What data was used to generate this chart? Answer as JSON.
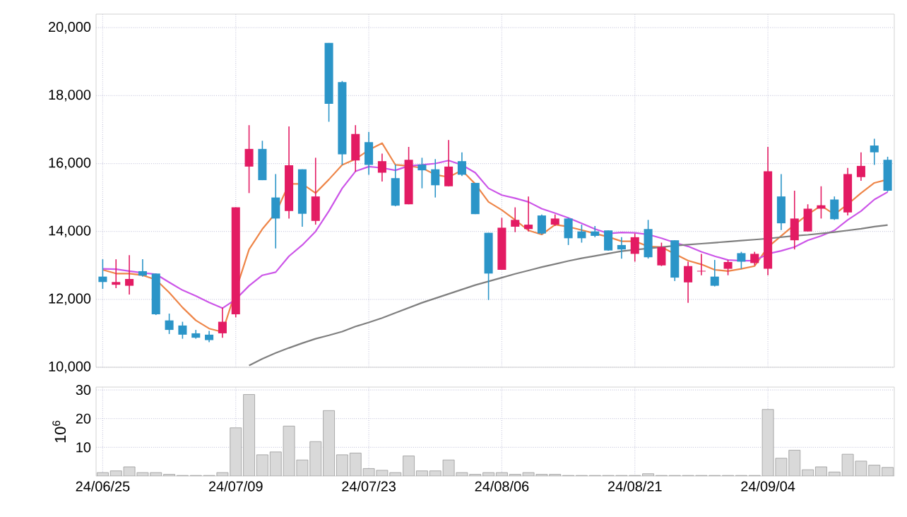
{
  "chart_data": [
    {
      "type": "candlestick",
      "categories": [
        null,
        null,
        null,
        null,
        null,
        null,
        null,
        null,
        null,
        null,
        null,
        null,
        null,
        null,
        null,
        null,
        null,
        null,
        null,
        null,
        null,
        null,
        null,
        null,
        null,
        null,
        null,
        null,
        null,
        null,
        null,
        null,
        null,
        null,
        null,
        null,
        null,
        null,
        null,
        null,
        null,
        null,
        null,
        null,
        null,
        null,
        null,
        null,
        null,
        null,
        null,
        null,
        null,
        null,
        null,
        null,
        null,
        null,
        null,
        null
      ],
      "ohlc": [
        [
          12670,
          13180,
          12310,
          12510
        ],
        [
          12430,
          13180,
          12330,
          12510
        ],
        [
          12400,
          13300,
          12140,
          12600
        ],
        [
          12830,
          13180,
          12670,
          12700
        ],
        [
          12760,
          12760,
          11540,
          11560
        ],
        [
          11380,
          11580,
          10980,
          11100
        ],
        [
          11230,
          11340,
          10840,
          10960
        ],
        [
          11000,
          11100,
          10840,
          10870
        ],
        [
          10960,
          11070,
          10740,
          10800
        ],
        [
          11000,
          11760,
          10870,
          11340
        ],
        [
          11560,
          14710,
          11470,
          14710
        ],
        [
          15910,
          17130,
          15130,
          16430
        ],
        [
          16430,
          16670,
          15510,
          15510
        ],
        [
          15000,
          15690,
          13500,
          14380
        ],
        [
          14600,
          17090,
          14380,
          15950
        ],
        [
          15830,
          15830,
          14140,
          14520
        ],
        [
          14310,
          16170,
          14200,
          15030
        ],
        [
          19550,
          19550,
          17230,
          17760
        ],
        [
          18400,
          18430,
          15960,
          16270
        ],
        [
          16090,
          17130,
          15760,
          16870
        ],
        [
          16630,
          16930,
          15670,
          15960
        ],
        [
          15730,
          16290,
          15470,
          16070
        ],
        [
          15570,
          15970,
          14740,
          14760
        ],
        [
          14800,
          16490,
          14800,
          16110
        ],
        [
          15970,
          16170,
          15270,
          15800
        ],
        [
          15830,
          16130,
          15000,
          15360
        ],
        [
          15330,
          16690,
          15330,
          15910
        ],
        [
          16070,
          16330,
          15630,
          15670
        ],
        [
          15430,
          15430,
          14510,
          14510
        ],
        [
          13960,
          13960,
          11980,
          12760
        ],
        [
          12870,
          14400,
          12870,
          14110
        ],
        [
          14140,
          14710,
          13980,
          14340
        ],
        [
          14070,
          15030,
          14000,
          14200
        ],
        [
          14470,
          14500,
          13910,
          13940
        ],
        [
          14200,
          14500,
          14160,
          14380
        ],
        [
          14380,
          14400,
          13600,
          13800
        ],
        [
          14000,
          14200,
          13670,
          13800
        ],
        [
          14000,
          14160,
          13830,
          13870
        ],
        [
          14030,
          14030,
          13430,
          13440
        ],
        [
          13600,
          13830,
          13200,
          13470
        ],
        [
          13340,
          13940,
          13110,
          13830
        ],
        [
          14070,
          14340,
          13200,
          13240
        ],
        [
          13000,
          13670,
          12980,
          13540
        ],
        [
          13740,
          13740,
          12540,
          12640
        ],
        [
          12500,
          13110,
          11900,
          12980
        ],
        [
          12820,
          13340,
          12710,
          12840
        ],
        [
          12670,
          13160,
          12380,
          12400
        ],
        [
          12900,
          13160,
          12710,
          13100
        ],
        [
          13360,
          13400,
          12900,
          13110
        ],
        [
          13070,
          13400,
          13000,
          13340
        ],
        [
          12900,
          16490,
          12710,
          15770
        ],
        [
          15030,
          15690,
          14040,
          14240
        ],
        [
          13740,
          15200,
          13470,
          14380
        ],
        [
          14000,
          14800,
          14000,
          14670
        ],
        [
          14670,
          15330,
          14380,
          14770
        ],
        [
          14940,
          15030,
          14340,
          14360
        ],
        [
          14560,
          15870,
          14470,
          15690
        ],
        [
          15600,
          16330,
          15490,
          15930
        ],
        [
          16530,
          16730,
          15960,
          16330
        ],
        [
          16110,
          16200,
          15170,
          15200
        ]
      ],
      "colors": [
        "#2b95c8",
        "#e31b63",
        "#e31b63",
        "#2b95c8",
        "#2b95c8",
        "#2b95c8",
        "#2b95c8",
        "#2b95c8",
        "#2b95c8",
        "#e31b63",
        "#e31b63",
        "#e31b63",
        "#2b95c8",
        "#2b95c8",
        "#e31b63",
        "#2b95c8",
        "#e31b63",
        "#2b95c8",
        "#2b95c8",
        "#e31b63",
        "#2b95c8",
        "#e31b63",
        "#2b95c8",
        "#e31b63",
        "#2b95c8",
        "#2b95c8",
        "#e31b63",
        "#2b95c8",
        "#2b95c8",
        "#2b95c8",
        "#e31b63",
        "#e31b63",
        "#e31b63",
        "#2b95c8",
        "#e31b63",
        "#2b95c8",
        "#2b95c8",
        "#2b95c8",
        "#2b95c8",
        "#2b95c8",
        "#e31b63",
        "#2b95c8",
        "#e31b63",
        "#2b95c8",
        "#e31b63",
        "#e31b63",
        "#2b95c8",
        "#e31b63",
        "#2b95c8",
        "#e31b63",
        "#e31b63",
        "#2b95c8",
        "#e31b63",
        "#e31b63",
        "#e31b63",
        "#2b95c8",
        "#e31b63",
        "#e31b63",
        "#2b95c8",
        "#2b95c8"
      ],
      "series": [
        {
          "type": "line",
          "color": "#ee8548",
          "values": [
            12870,
            12760,
            12760,
            12710,
            12580,
            12200,
            11760,
            11380,
            11140,
            11040,
            null,
            13470,
            14070,
            14540,
            15400,
            15400,
            15130,
            15530,
            15960,
            16130,
            16400,
            16600,
            15960,
            15930,
            15870,
            15670,
            15600,
            15800,
            15400,
            14870,
            14630,
            14340,
            14030,
            13910,
            14200,
            14140,
            14040,
            13940,
            13840,
            13710,
            13710,
            13560,
            13540,
            13340,
            13140,
            13030,
            12870,
            12830,
            12900,
            12980,
            13540,
            13870,
            14200,
            14500,
            14760,
            14500,
            14800,
            15130,
            15430,
            15530
          ]
        },
        {
          "type": "line",
          "color": "#cc55e8",
          "values": [
            12900,
            12890,
            12830,
            12780,
            12740,
            12500,
            12270,
            12100,
            11910,
            11740,
            12000,
            12400,
            12710,
            12800,
            13270,
            13600,
            14000,
            14600,
            15270,
            15770,
            15910,
            15870,
            15800,
            15930,
            15960,
            16000,
            16090,
            15960,
            15730,
            15270,
            15070,
            14980,
            14870,
            14670,
            14540,
            14400,
            14240,
            14070,
            13940,
            13970,
            13960,
            13910,
            13800,
            13670,
            13560,
            13400,
            13270,
            13160,
            13140,
            13140,
            13340,
            13430,
            13540,
            13740,
            13870,
            14030,
            14340,
            14600,
            14940,
            15160
          ]
        },
        {
          "type": "line",
          "color": "#7f7f7f",
          "values": [
            null,
            null,
            null,
            null,
            null,
            null,
            null,
            null,
            null,
            null,
            null,
            10050,
            10250,
            10420,
            10570,
            10710,
            10840,
            10940,
            11050,
            11200,
            11320,
            11450,
            11600,
            11750,
            11900,
            12030,
            12160,
            12290,
            12420,
            12530,
            12640,
            12750,
            12850,
            12950,
            13040,
            13130,
            13210,
            13280,
            13350,
            13420,
            13460,
            13500,
            13540,
            13580,
            13610,
            13640,
            13670,
            13700,
            13730,
            13760,
            13790,
            13830,
            13870,
            13900,
            13940,
            13980,
            14030,
            14080,
            14140,
            14190
          ]
        }
      ],
      "ylim": [
        10000,
        20400
      ],
      "yticks": [
        {
          "value": 10000,
          "label": "10,000"
        },
        {
          "value": 12000,
          "label": "12,000"
        },
        {
          "value": 14000,
          "label": "14,000"
        },
        {
          "value": 16000,
          "label": "16,000"
        },
        {
          "value": 18000,
          "label": "18,000"
        },
        {
          "value": 20000,
          "label": "20,000"
        }
      ],
      "grid": true,
      "tick_labels": "y"
    },
    {
      "type": "bar",
      "categories": [
        "24/06/25",
        null,
        null,
        null,
        null,
        null,
        null,
        null,
        null,
        null,
        "24/07/09",
        null,
        null,
        null,
        null,
        null,
        null,
        null,
        null,
        null,
        "24/07/23",
        null,
        null,
        null,
        null,
        null,
        null,
        null,
        null,
        null,
        "24/08/06",
        null,
        null,
        null,
        null,
        null,
        null,
        null,
        null,
        null,
        "24/08/21",
        null,
        null,
        null,
        null,
        null,
        null,
        null,
        null,
        null,
        "24/09/04",
        null,
        null,
        null,
        null,
        null,
        null,
        null,
        null,
        null
      ],
      "values": [
        1.2,
        1.8,
        3.2,
        1.2,
        1.2,
        0.6,
        0.2,
        0.2,
        0.2,
        1.2,
        16.8,
        28.4,
        7.4,
        8.4,
        17.4,
        5.6,
        12,
        22.8,
        7.4,
        8,
        2.6,
        2,
        1.2,
        7,
        1.8,
        1.8,
        5.6,
        1.2,
        0.6,
        1.2,
        1.2,
        0.6,
        1.2,
        0.6,
        0.6,
        0.2,
        0.2,
        0.2,
        0.2,
        0.2,
        0.2,
        0.8,
        0.2,
        0.2,
        0.2,
        0.2,
        0.2,
        0.2,
        0.2,
        0.2,
        23.2,
        6.2,
        9,
        2.2,
        3.2,
        1.4,
        7.6,
        5.2,
        3.8,
        3
      ],
      "color": "#d9d9d9",
      "ylabel": "10$^{6}$",
      "ylim": [
        0,
        31
      ],
      "yticks": [
        10,
        20,
        30
      ],
      "grid": true
    }
  ]
}
